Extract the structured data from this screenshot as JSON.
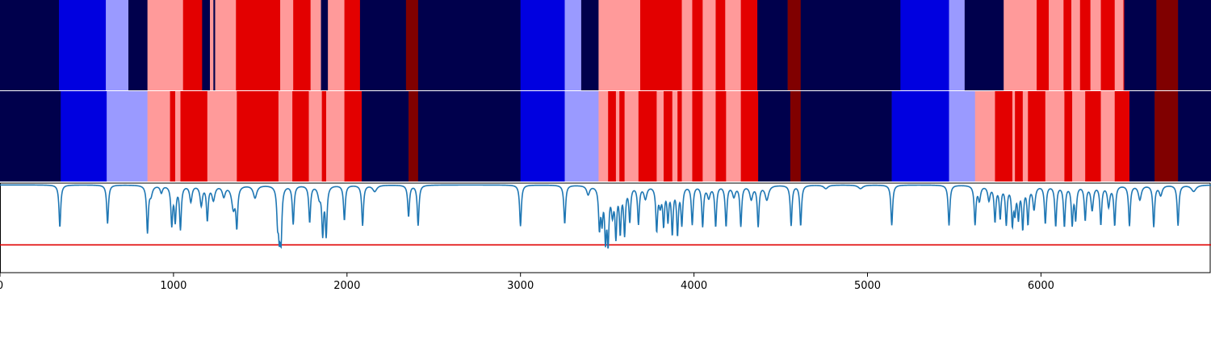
{
  "chart_data": [
    {
      "type": "heatmap",
      "panel": "top-band",
      "xlim": [
        0,
        6980
      ],
      "segments": [
        {
          "start": 0,
          "end": 340,
          "color": "#00004c"
        },
        {
          "start": 340,
          "end": 610,
          "color": "#0000e0"
        },
        {
          "start": 610,
          "end": 740,
          "color": "#9a9aff"
        },
        {
          "start": 740,
          "end": 850,
          "color": "#00004c"
        },
        {
          "start": 850,
          "end": 1055,
          "color": "#ff9a9a"
        },
        {
          "start": 1055,
          "end": 1165,
          "color": "#e30000"
        },
        {
          "start": 1165,
          "end": 1210,
          "color": "#00004c"
        },
        {
          "start": 1210,
          "end": 1230,
          "color": "#ff9a9a"
        },
        {
          "start": 1230,
          "end": 1240,
          "color": "#00004c"
        },
        {
          "start": 1240,
          "end": 1360,
          "color": "#ff9a9a"
        },
        {
          "start": 1360,
          "end": 1615,
          "color": "#e30000"
        },
        {
          "start": 1615,
          "end": 1690,
          "color": "#ff9a9a"
        },
        {
          "start": 1690,
          "end": 1790,
          "color": "#e30000"
        },
        {
          "start": 1790,
          "end": 1850,
          "color": "#ff9a9a"
        },
        {
          "start": 1850,
          "end": 1890,
          "color": "#00004c"
        },
        {
          "start": 1890,
          "end": 1985,
          "color": "#ff9a9a"
        },
        {
          "start": 1985,
          "end": 2075,
          "color": "#e30000"
        },
        {
          "start": 2075,
          "end": 2340,
          "color": "#00004c"
        },
        {
          "start": 2340,
          "end": 2410,
          "color": "#800000"
        },
        {
          "start": 2410,
          "end": 3000,
          "color": "#00004c"
        },
        {
          "start": 3000,
          "end": 3255,
          "color": "#0000e0"
        },
        {
          "start": 3255,
          "end": 3350,
          "color": "#9a9aff"
        },
        {
          "start": 3350,
          "end": 3450,
          "color": "#00004c"
        },
        {
          "start": 3450,
          "end": 3690,
          "color": "#ff9a9a"
        },
        {
          "start": 3690,
          "end": 3930,
          "color": "#e30000"
        },
        {
          "start": 3930,
          "end": 3990,
          "color": "#ff9a9a"
        },
        {
          "start": 3990,
          "end": 4050,
          "color": "#e30000"
        },
        {
          "start": 4050,
          "end": 4125,
          "color": "#ff9a9a"
        },
        {
          "start": 4125,
          "end": 4180,
          "color": "#e30000"
        },
        {
          "start": 4180,
          "end": 4270,
          "color": "#ff9a9a"
        },
        {
          "start": 4270,
          "end": 4365,
          "color": "#e30000"
        },
        {
          "start": 4365,
          "end": 4540,
          "color": "#00004c"
        },
        {
          "start": 4540,
          "end": 4615,
          "color": "#800000"
        },
        {
          "start": 4615,
          "end": 5190,
          "color": "#00004c"
        },
        {
          "start": 5190,
          "end": 5470,
          "color": "#0000e0"
        },
        {
          "start": 5470,
          "end": 5560,
          "color": "#9a9aff"
        },
        {
          "start": 5560,
          "end": 5785,
          "color": "#00004c"
        },
        {
          "start": 5785,
          "end": 5975,
          "color": "#ff9a9a"
        },
        {
          "start": 5975,
          "end": 6045,
          "color": "#e30000"
        },
        {
          "start": 6045,
          "end": 6130,
          "color": "#ff9a9a"
        },
        {
          "start": 6130,
          "end": 6175,
          "color": "#e30000"
        },
        {
          "start": 6175,
          "end": 6225,
          "color": "#ff9a9a"
        },
        {
          "start": 6225,
          "end": 6285,
          "color": "#e30000"
        },
        {
          "start": 6285,
          "end": 6345,
          "color": "#ff9a9a"
        },
        {
          "start": 6345,
          "end": 6425,
          "color": "#e30000"
        },
        {
          "start": 6425,
          "end": 6475,
          "color": "#ff9a9a"
        },
        {
          "start": 6475,
          "end": 6480,
          "color": "#e30000"
        },
        {
          "start": 6480,
          "end": 6665,
          "color": "#00004c"
        },
        {
          "start": 6665,
          "end": 6790,
          "color": "#800000"
        },
        {
          "start": 6790,
          "end": 6980,
          "color": "#00004c"
        }
      ]
    },
    {
      "type": "heatmap",
      "panel": "middle-band",
      "xlim": [
        0,
        6980
      ],
      "segments": [
        {
          "start": 0,
          "end": 350,
          "color": "#00004c"
        },
        {
          "start": 350,
          "end": 615,
          "color": "#0000e0"
        },
        {
          "start": 615,
          "end": 850,
          "color": "#9a9aff"
        },
        {
          "start": 850,
          "end": 980,
          "color": "#ff9a9a"
        },
        {
          "start": 980,
          "end": 1010,
          "color": "#e30000"
        },
        {
          "start": 1010,
          "end": 1040,
          "color": "#ff9a9a"
        },
        {
          "start": 1040,
          "end": 1195,
          "color": "#e30000"
        },
        {
          "start": 1195,
          "end": 1365,
          "color": "#ff9a9a"
        },
        {
          "start": 1365,
          "end": 1605,
          "color": "#e30000"
        },
        {
          "start": 1605,
          "end": 1685,
          "color": "#ff9a9a"
        },
        {
          "start": 1685,
          "end": 1780,
          "color": "#e30000"
        },
        {
          "start": 1780,
          "end": 1855,
          "color": "#ff9a9a"
        },
        {
          "start": 1855,
          "end": 1880,
          "color": "#e30000"
        },
        {
          "start": 1880,
          "end": 1985,
          "color": "#ff9a9a"
        },
        {
          "start": 1985,
          "end": 2085,
          "color": "#e30000"
        },
        {
          "start": 2085,
          "end": 2355,
          "color": "#00004c"
        },
        {
          "start": 2355,
          "end": 2410,
          "color": "#800000"
        },
        {
          "start": 2410,
          "end": 3000,
          "color": "#00004c"
        },
        {
          "start": 3000,
          "end": 3255,
          "color": "#0000e0"
        },
        {
          "start": 3255,
          "end": 3450,
          "color": "#9a9aff"
        },
        {
          "start": 3450,
          "end": 3505,
          "color": "#ff9a9a"
        },
        {
          "start": 3505,
          "end": 3550,
          "color": "#e30000"
        },
        {
          "start": 3550,
          "end": 3570,
          "color": "#ff9a9a"
        },
        {
          "start": 3570,
          "end": 3600,
          "color": "#e30000"
        },
        {
          "start": 3600,
          "end": 3680,
          "color": "#ff9a9a"
        },
        {
          "start": 3680,
          "end": 3785,
          "color": "#e30000"
        },
        {
          "start": 3785,
          "end": 3825,
          "color": "#ff9a9a"
        },
        {
          "start": 3825,
          "end": 3875,
          "color": "#e30000"
        },
        {
          "start": 3875,
          "end": 3905,
          "color": "#ff9a9a"
        },
        {
          "start": 3905,
          "end": 3930,
          "color": "#e30000"
        },
        {
          "start": 3930,
          "end": 3990,
          "color": "#ff9a9a"
        },
        {
          "start": 3990,
          "end": 4050,
          "color": "#e30000"
        },
        {
          "start": 4050,
          "end": 4125,
          "color": "#ff9a9a"
        },
        {
          "start": 4125,
          "end": 4185,
          "color": "#e30000"
        },
        {
          "start": 4185,
          "end": 4270,
          "color": "#ff9a9a"
        },
        {
          "start": 4270,
          "end": 4370,
          "color": "#e30000"
        },
        {
          "start": 4370,
          "end": 4555,
          "color": "#00004c"
        },
        {
          "start": 4555,
          "end": 4615,
          "color": "#800000"
        },
        {
          "start": 4615,
          "end": 5140,
          "color": "#00004c"
        },
        {
          "start": 5140,
          "end": 5470,
          "color": "#0000e0"
        },
        {
          "start": 5470,
          "end": 5620,
          "color": "#9a9aff"
        },
        {
          "start": 5620,
          "end": 5735,
          "color": "#ff9a9a"
        },
        {
          "start": 5735,
          "end": 5835,
          "color": "#e30000"
        },
        {
          "start": 5835,
          "end": 5850,
          "color": "#ff9a9a"
        },
        {
          "start": 5850,
          "end": 5895,
          "color": "#e30000"
        },
        {
          "start": 5895,
          "end": 5925,
          "color": "#ff9a9a"
        },
        {
          "start": 5925,
          "end": 6025,
          "color": "#e30000"
        },
        {
          "start": 6025,
          "end": 6135,
          "color": "#ff9a9a"
        },
        {
          "start": 6135,
          "end": 6180,
          "color": "#e30000"
        },
        {
          "start": 6180,
          "end": 6255,
          "color": "#ff9a9a"
        },
        {
          "start": 6255,
          "end": 6345,
          "color": "#e30000"
        },
        {
          "start": 6345,
          "end": 6425,
          "color": "#ff9a9a"
        },
        {
          "start": 6425,
          "end": 6510,
          "color": "#e30000"
        },
        {
          "start": 6510,
          "end": 6655,
          "color": "#00004c"
        },
        {
          "start": 6655,
          "end": 6790,
          "color": "#800000"
        },
        {
          "start": 6790,
          "end": 6980,
          "color": "#00004c"
        }
      ]
    },
    {
      "type": "line",
      "panel": "signal",
      "xlim": [
        0,
        6980
      ],
      "ylim": [
        0,
        1
      ],
      "threshold": 0.31,
      "threshold_color": "#e00000",
      "line_color": "#1f77b4",
      "baseline": 0.98,
      "dips": [
        [
          345,
          0.51,
          6
        ],
        [
          620,
          0.55,
          6
        ],
        [
          850,
          0.46,
          6
        ],
        [
          870,
          0.88,
          10
        ],
        [
          930,
          0.9,
          8
        ],
        [
          990,
          0.55,
          6
        ],
        [
          1010,
          0.6,
          6
        ],
        [
          1040,
          0.5,
          6
        ],
        [
          1100,
          0.8,
          8
        ],
        [
          1160,
          0.76,
          8
        ],
        [
          1195,
          0.6,
          6
        ],
        [
          1230,
          0.82,
          10
        ],
        [
          1290,
          0.86,
          10
        ],
        [
          1345,
          0.73,
          12
        ],
        [
          1365,
          0.55,
          6
        ],
        [
          1470,
          0.84,
          12
        ],
        [
          1600,
          0.63,
          6
        ],
        [
          1610,
          0.53,
          6
        ],
        [
          1620,
          0.44,
          6
        ],
        [
          1690,
          0.55,
          6
        ],
        [
          1785,
          0.57,
          6
        ],
        [
          1840,
          0.86,
          10
        ],
        [
          1860,
          0.46,
          6
        ],
        [
          1880,
          0.44,
          6
        ],
        [
          1985,
          0.59,
          6
        ],
        [
          2090,
          0.53,
          6
        ],
        [
          2160,
          0.91,
          14
        ],
        [
          2355,
          0.63,
          6
        ],
        [
          2410,
          0.53,
          6
        ],
        [
          3000,
          0.52,
          6
        ],
        [
          3255,
          0.55,
          6
        ],
        [
          3390,
          0.88,
          10
        ],
        [
          3455,
          0.53,
          6
        ],
        [
          3470,
          0.63,
          6
        ],
        [
          3490,
          0.43,
          6
        ],
        [
          3505,
          0.4,
          6
        ],
        [
          3530,
          0.7,
          8
        ],
        [
          3550,
          0.45,
          6
        ],
        [
          3575,
          0.49,
          6
        ],
        [
          3600,
          0.46,
          6
        ],
        [
          3630,
          0.6,
          6
        ],
        [
          3680,
          0.56,
          6
        ],
        [
          3720,
          0.84,
          10
        ],
        [
          3785,
          0.5,
          6
        ],
        [
          3805,
          0.79,
          8
        ],
        [
          3825,
          0.57,
          6
        ],
        [
          3850,
          0.62,
          6
        ],
        [
          3875,
          0.47,
          6
        ],
        [
          3905,
          0.46,
          6
        ],
        [
          3930,
          0.56,
          6
        ],
        [
          3990,
          0.55,
          6
        ],
        [
          4050,
          0.53,
          6
        ],
        [
          4085,
          0.85,
          10
        ],
        [
          4125,
          0.53,
          6
        ],
        [
          4185,
          0.53,
          6
        ],
        [
          4230,
          0.86,
          10
        ],
        [
          4270,
          0.53,
          6
        ],
        [
          4330,
          0.83,
          10
        ],
        [
          4370,
          0.53,
          6
        ],
        [
          4420,
          0.82,
          12
        ],
        [
          4560,
          0.53,
          6
        ],
        [
          4615,
          0.53,
          6
        ],
        [
          4760,
          0.94,
          14
        ],
        [
          4960,
          0.94,
          16
        ],
        [
          5140,
          0.53,
          6
        ],
        [
          5470,
          0.53,
          6
        ],
        [
          5620,
          0.55,
          6
        ],
        [
          5645,
          0.82,
          8
        ],
        [
          5700,
          0.82,
          8
        ],
        [
          5735,
          0.59,
          6
        ],
        [
          5765,
          0.63,
          6
        ],
        [
          5800,
          0.56,
          6
        ],
        [
          5835,
          0.57,
          6
        ],
        [
          5850,
          0.72,
          6
        ],
        [
          5870,
          0.64,
          6
        ],
        [
          5895,
          0.52,
          6
        ],
        [
          5925,
          0.57,
          6
        ],
        [
          5960,
          0.72,
          8
        ],
        [
          6025,
          0.56,
          6
        ],
        [
          6085,
          0.53,
          6
        ],
        [
          6135,
          0.53,
          6
        ],
        [
          6180,
          0.56,
          6
        ],
        [
          6200,
          0.62,
          6
        ],
        [
          6255,
          0.6,
          6
        ],
        [
          6295,
          0.71,
          8
        ],
        [
          6345,
          0.55,
          6
        ],
        [
          6390,
          0.75,
          8
        ],
        [
          6425,
          0.54,
          6
        ],
        [
          6510,
          0.53,
          6
        ],
        [
          6570,
          0.82,
          10
        ],
        [
          6650,
          0.52,
          6
        ],
        [
          6690,
          0.87,
          10
        ],
        [
          6790,
          0.53,
          6
        ],
        [
          6880,
          0.91,
          16
        ]
      ],
      "xticks": [
        0,
        1000,
        2000,
        3000,
        4000,
        5000,
        6000
      ],
      "xtick_labels": [
        "0",
        "1000",
        "2000",
        "3000",
        "4000",
        "5000",
        "6000"
      ]
    }
  ]
}
